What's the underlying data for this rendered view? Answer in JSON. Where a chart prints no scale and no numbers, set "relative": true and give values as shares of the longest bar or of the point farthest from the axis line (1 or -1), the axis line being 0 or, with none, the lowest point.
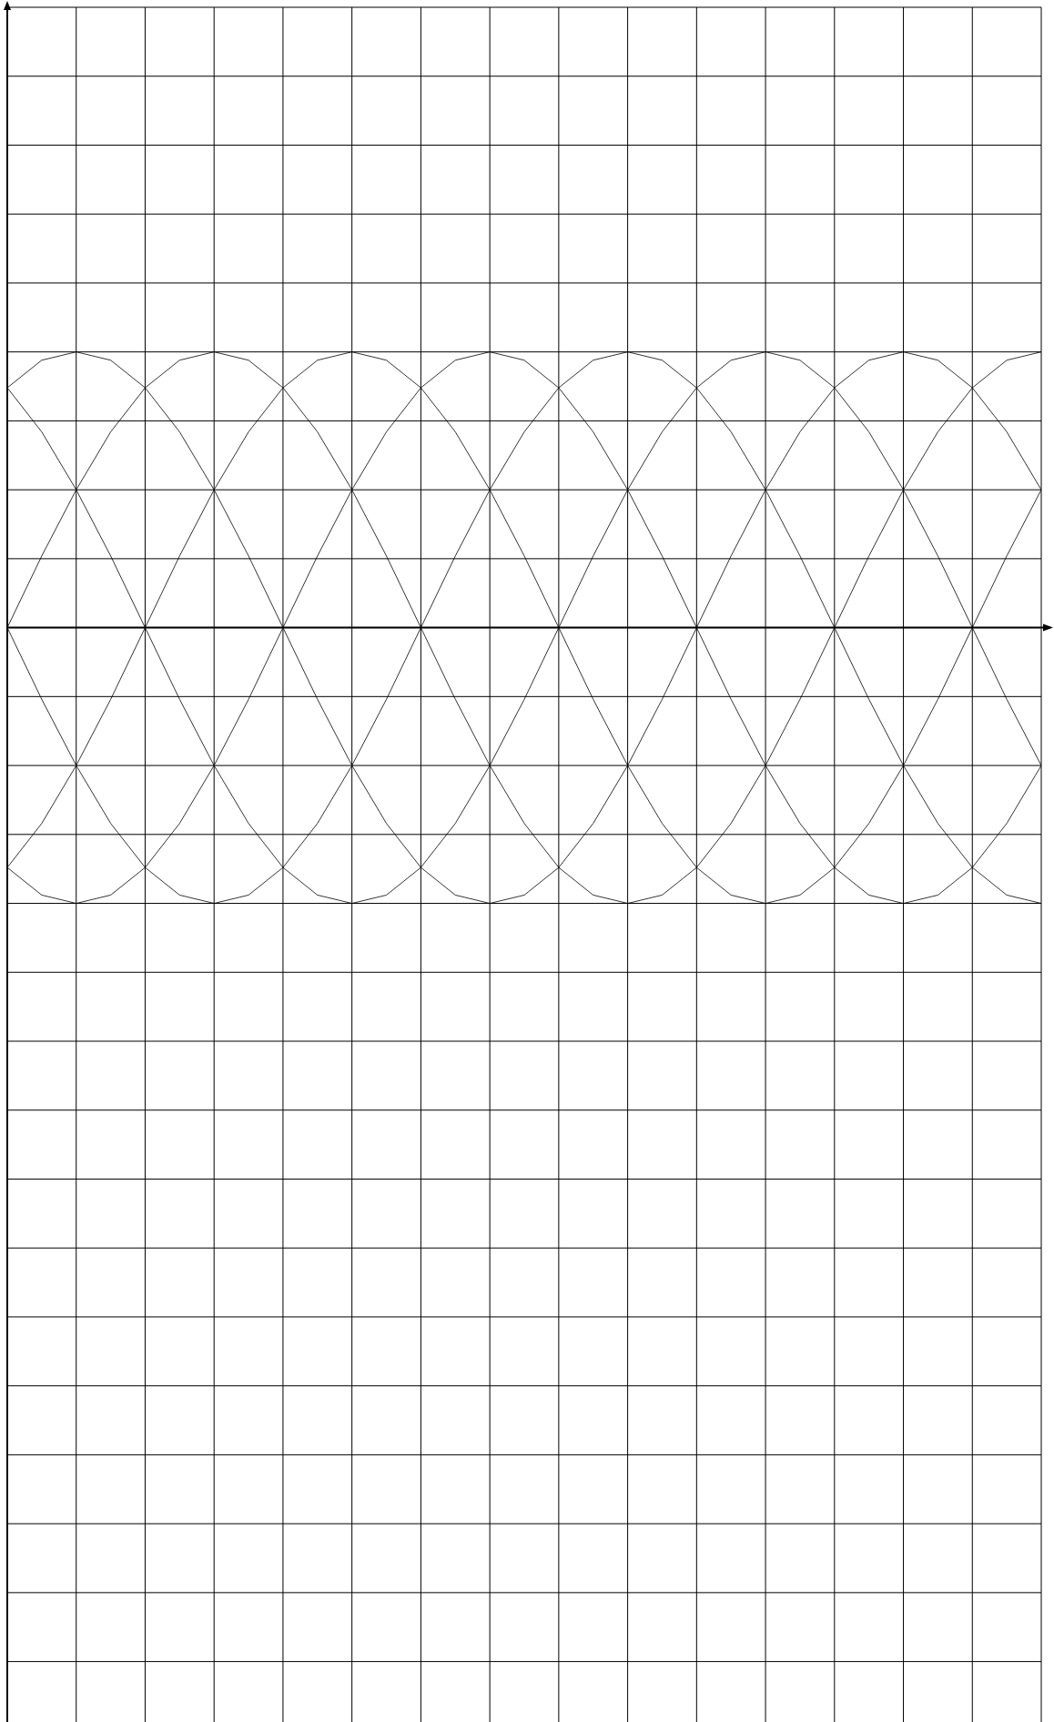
{
  "chart_data": {
    "type": "line",
    "relative": true,
    "grid": true,
    "legend": false,
    "tick_labels": false,
    "marker": "none",
    "line_style": "solid",
    "categories": [
      null,
      null,
      null,
      null,
      null,
      null,
      null,
      null,
      null,
      null,
      null,
      null,
      null,
      null,
      null,
      null,
      null,
      null,
      null,
      null,
      null,
      null,
      null,
      null,
      null,
      null,
      null,
      null,
      null,
      null,
      null
    ],
    "series": [
      {
        "color": "#000000",
        "values": [
          0,
          0.26,
          0.5,
          0.71,
          0.87,
          0.97,
          1,
          0.97,
          0.87,
          0.71,
          0.5,
          0.26,
          0,
          -0.26,
          -0.5,
          -0.71,
          -0.87,
          -0.97,
          -1,
          -0.97,
          -0.87,
          -0.71,
          -0.5,
          -0.26,
          0,
          0.26,
          0.5,
          0.71,
          0.87,
          0.97,
          1
        ]
      },
      {
        "color": "#000000",
        "values": [
          0.87,
          0.97,
          1,
          0.97,
          0.87,
          0.71,
          0.5,
          0.26,
          0,
          -0.26,
          -0.5,
          -0.71,
          -0.87,
          -0.97,
          -1,
          -0.97,
          -0.87,
          -0.71,
          -0.5,
          -0.26,
          0,
          0.26,
          0.5,
          0.71,
          0.87,
          0.97,
          1,
          0.97,
          0.87,
          0.71,
          0.5
        ]
      },
      {
        "color": "#000000",
        "values": [
          0.87,
          0.71,
          0.5,
          0.26,
          0,
          -0.26,
          -0.5,
          -0.71,
          -0.87,
          -0.97,
          -1,
          -0.97,
          -0.87,
          -0.71,
          -0.5,
          -0.26,
          0,
          0.26,
          0.5,
          0.71,
          0.87,
          0.97,
          1,
          0.97,
          0.87,
          0.71,
          0.5,
          0.26,
          0,
          -0.26,
          -0.5
        ]
      },
      {
        "color": "#000000",
        "values": [
          0,
          -0.26,
          -0.5,
          -0.71,
          -0.87,
          -0.97,
          -1,
          -0.97,
          -0.87,
          -0.71,
          -0.5,
          -0.26,
          0,
          0.26,
          0.5,
          0.71,
          0.87,
          0.97,
          1,
          0.97,
          0.87,
          0.71,
          0.5,
          0.26,
          0,
          -0.26,
          -0.5,
          -0.71,
          -0.87,
          -0.97,
          -1
        ]
      },
      {
        "color": "#000000",
        "values": [
          -0.87,
          -0.97,
          -1,
          -0.97,
          -0.87,
          -0.71,
          -0.5,
          -0.26,
          0,
          0.26,
          0.5,
          0.71,
          0.87,
          0.97,
          1,
          0.97,
          0.87,
          0.71,
          0.5,
          0.26,
          0,
          -0.26,
          -0.5,
          -0.71,
          -0.87,
          -0.97,
          -1,
          -0.97,
          -0.87,
          -0.71,
          -0.5
        ]
      },
      {
        "color": "#000000",
        "values": [
          -0.87,
          -0.71,
          -0.5,
          -0.26,
          0,
          0.26,
          0.5,
          0.71,
          0.87,
          0.97,
          1,
          0.97,
          0.87,
          0.71,
          0.5,
          0.26,
          0,
          -0.26,
          -0.5,
          -0.71,
          -0.87,
          -0.97,
          -1,
          -0.97,
          -0.87,
          -0.71,
          -0.5,
          -0.26,
          0,
          0.26,
          0.5
        ]
      }
    ]
  }
}
